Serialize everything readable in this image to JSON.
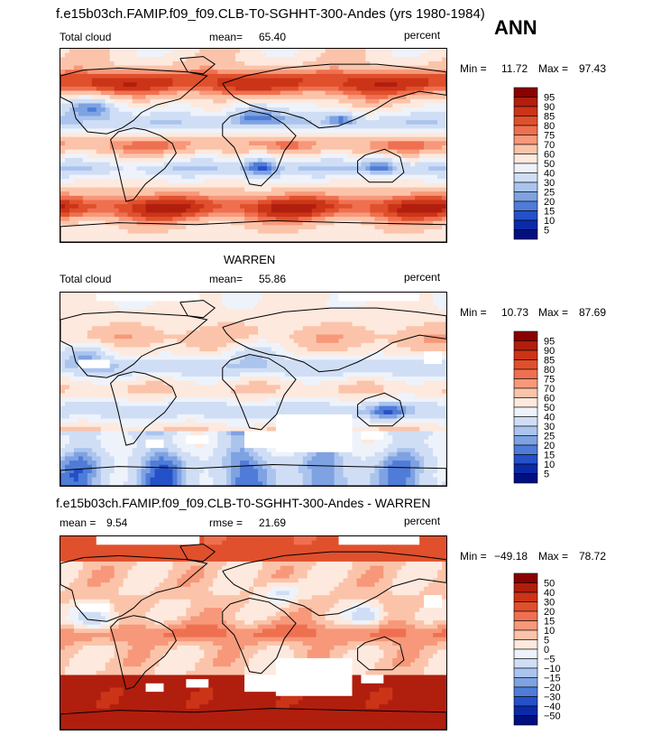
{
  "header": {
    "title": "f.e15b03ch.FAMIP.f09_f09.CLB-T0-SGHHT-300-Andes (yrs 1980-1984)",
    "season": "ANN"
  },
  "panels": [
    {
      "heading": "",
      "variable": "Total cloud",
      "stat1_label": "mean=",
      "stat1_value": "65.40",
      "stat2_label": "",
      "stat2_value": "",
      "units": "percent",
      "min_label": "Min =",
      "min_value": "11.72",
      "max_label": "Max =",
      "max_value": "97.43",
      "colorbar": {
        "labels": [
          "95",
          "90",
          "85",
          "80",
          "75",
          "70",
          "60",
          "50",
          "40",
          "30",
          "25",
          "20",
          "15",
          "10",
          "5"
        ],
        "colors": [
          "#8b0000",
          "#b01e0e",
          "#cc3418",
          "#e0502c",
          "#ef7050",
          "#f7987a",
          "#fbc4aa",
          "#fde9de",
          "#eef3fb",
          "#d0def5",
          "#aac4ee",
          "#7ea2e2",
          "#4f7cd8",
          "#2450c8",
          "#0a2aa8",
          "#001080"
        ]
      }
    },
    {
      "heading": "WARREN",
      "variable": "Total cloud",
      "stat1_label": "mean=",
      "stat1_value": "55.86",
      "stat2_label": "",
      "stat2_value": "",
      "units": "percent",
      "min_label": "Min =",
      "min_value": "10.73",
      "max_label": "Max =",
      "max_value": "87.69",
      "colorbar": {
        "labels": [
          "95",
          "90",
          "85",
          "80",
          "75",
          "70",
          "60",
          "50",
          "40",
          "30",
          "25",
          "20",
          "15",
          "10",
          "5"
        ],
        "colors": [
          "#8b0000",
          "#b01e0e",
          "#cc3418",
          "#e0502c",
          "#ef7050",
          "#f7987a",
          "#fbc4aa",
          "#fde9de",
          "#eef3fb",
          "#d0def5",
          "#aac4ee",
          "#7ea2e2",
          "#4f7cd8",
          "#2450c8",
          "#0a2aa8",
          "#001080"
        ]
      }
    },
    {
      "heading": "f.e15b03ch.FAMIP.f09_f09.CLB-T0-SGHHT-300-Andes - WARREN",
      "variable": "",
      "stat1_label": "mean =",
      "stat1_value": "9.54",
      "stat2_label": "rmse =",
      "stat2_value": "21.69",
      "units": "percent",
      "min_label": "Min =",
      "min_value": "−49.18",
      "max_label": "Max =",
      "max_value": "78.72",
      "colorbar": {
        "labels": [
          "50",
          "40",
          "30",
          "20",
          "15",
          "10",
          "5",
          "0",
          "−5",
          "−10",
          "−15",
          "−20",
          "−30",
          "−40",
          "−50"
        ],
        "colors": [
          "#8b0000",
          "#b01e0e",
          "#cc3418",
          "#e0502c",
          "#ef7050",
          "#f7987a",
          "#fbc4aa",
          "#fde9de",
          "#eef3fb",
          "#d0def5",
          "#aac4ee",
          "#7ea2e2",
          "#4f7cd8",
          "#2450c8",
          "#0a2aa8",
          "#001080"
        ]
      }
    }
  ]
}
